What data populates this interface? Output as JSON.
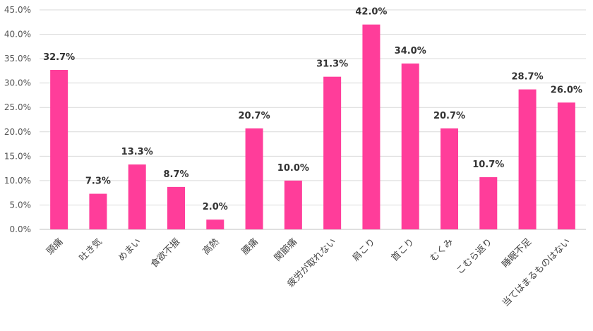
{
  "chart_data": {
    "type": "bar",
    "categories": [
      "頭痛",
      "吐き気",
      "めまい",
      "食欲不振",
      "高熱",
      "腰痛",
      "関節痛",
      "疲労が取れない",
      "肩こり",
      "首こり",
      "むくみ",
      "こむら返り",
      "睡眠不足",
      "当てはまるものはない"
    ],
    "values": [
      32.7,
      7.3,
      13.3,
      8.7,
      2.0,
      20.7,
      10.0,
      31.3,
      42.0,
      34.0,
      20.7,
      10.7,
      28.7,
      26.0
    ],
    "value_labels": [
      "32.7%",
      "7.3%",
      "13.3%",
      "8.7%",
      "2.0%",
      "20.7%",
      "10.0%",
      "31.3%",
      "42.0%",
      "34.0%",
      "20.7%",
      "10.7%",
      "28.7%",
      "26.0%"
    ],
    "y_ticks": [
      "0.0%",
      "5.0%",
      "10.0%",
      "15.0%",
      "20.0%",
      "25.0%",
      "30.0%",
      "35.0%",
      "40.0%",
      "45.0%"
    ],
    "ylim": [
      0,
      45
    ],
    "grid": true,
    "bar_color": "#ff3d9a",
    "title": "",
    "xlabel": "",
    "ylabel": ""
  }
}
